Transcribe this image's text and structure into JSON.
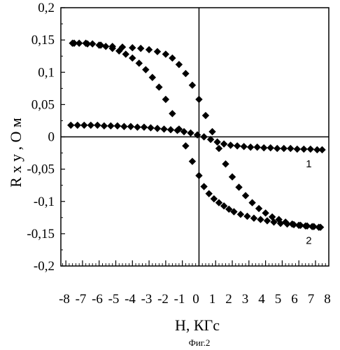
{
  "chart_data": {
    "type": "scatter",
    "title": "",
    "caption": "Фиг.2",
    "xlabel": "H, КГс",
    "ylabel": "R x y , О м",
    "xlim": [
      -8.3,
      7.8
    ],
    "ylim": [
      -0.2,
      0.2
    ],
    "x_ticks": [
      -8,
      -7,
      -6,
      -5,
      -4,
      -3,
      -2,
      -1,
      0,
      1,
      2,
      3,
      4,
      5,
      6,
      7,
      8
    ],
    "x_tick_labels": [
      "-8",
      "-7",
      "-6",
      "-5",
      "-4",
      "-3",
      "-2",
      "-1",
      "0",
      "1",
      "2",
      "3",
      "4",
      "5",
      "6",
      "7",
      "8"
    ],
    "y_ticks": [
      0.2,
      0.15,
      0.1,
      0.05,
      0,
      -0.05,
      -0.1,
      -0.15,
      -0.2
    ],
    "y_tick_labels": [
      "0,2",
      "0,15",
      "0,1",
      "0,05",
      "0",
      "-0,05",
      "-0,1",
      "-0,15",
      "-0,2"
    ],
    "grid": false,
    "marker": "diamond",
    "series": [
      {
        "name": "1",
        "x": [
          -7.7,
          -7.3,
          -6.9,
          -6.5,
          -6.1,
          -5.7,
          -5.3,
          -4.9,
          -4.5,
          -4.1,
          -3.7,
          -3.3,
          -2.9,
          -2.5,
          -2.1,
          -1.7,
          -1.3,
          -0.9,
          -0.5,
          -0.1,
          0.3,
          0.7,
          1.1,
          1.5,
          1.9,
          2.3,
          2.7,
          3.1,
          3.5,
          3.9,
          4.3,
          4.7,
          5.1,
          5.5,
          5.9,
          6.3,
          6.7,
          7.1,
          7.4
        ],
        "y": [
          0.018,
          0.018,
          0.018,
          0.018,
          0.018,
          0.017,
          0.017,
          0.017,
          0.016,
          0.016,
          0.015,
          0.015,
          0.014,
          0.013,
          0.012,
          0.011,
          0.01,
          0.008,
          0.006,
          0.003,
          0.0,
          -0.004,
          -0.008,
          -0.011,
          -0.013,
          -0.014,
          -0.015,
          -0.016,
          -0.016,
          -0.017,
          -0.017,
          -0.018,
          -0.018,
          -0.018,
          -0.019,
          -0.019,
          -0.019,
          -0.02,
          -0.02
        ]
      },
      {
        "name": "2",
        "x": [
          -7.6,
          -7.2,
          -6.8,
          -6.4,
          -6.0,
          -5.6,
          -5.2,
          -4.8,
          -4.4,
          -4.0,
          -3.6,
          -3.2,
          -2.8,
          -2.4,
          -2.0,
          -1.6,
          -1.2,
          -0.8,
          -0.4,
          0.0,
          0.3,
          0.6,
          0.9,
          1.2,
          1.5,
          1.8,
          2.1,
          2.5,
          2.9,
          3.3,
          3.7,
          4.1,
          4.5,
          4.9,
          5.3,
          5.7,
          6.1,
          6.5,
          6.9,
          7.3,
          -7.5,
          -6.7,
          -5.9,
          -5.2,
          -4.6,
          -4.0,
          -3.5,
          -3.0,
          -2.5,
          -2.0,
          -1.6,
          -1.2,
          -0.8,
          -0.4,
          0.0,
          0.4,
          0.8,
          1.2,
          1.6,
          2.0,
          2.4,
          2.8,
          3.2,
          3.6,
          4.0,
          4.4,
          4.8,
          5.2,
          5.6,
          6.0,
          6.4,
          6.8,
          7.2
        ],
        "y": [
          0.145,
          0.145,
          0.145,
          0.144,
          0.142,
          0.14,
          0.137,
          0.133,
          0.128,
          0.122,
          0.114,
          0.104,
          0.092,
          0.077,
          0.058,
          0.036,
          0.012,
          -0.014,
          -0.038,
          -0.06,
          -0.077,
          -0.088,
          -0.096,
          -0.102,
          -0.107,
          -0.112,
          -0.116,
          -0.12,
          -0.123,
          -0.126,
          -0.128,
          -0.13,
          -0.132,
          -0.134,
          -0.135,
          -0.136,
          -0.137,
          -0.138,
          -0.139,
          -0.14,
          0.145,
          0.144,
          0.142,
          0.14,
          0.139,
          0.138,
          0.137,
          0.135,
          0.132,
          0.128,
          0.122,
          0.112,
          0.098,
          0.08,
          0.058,
          0.033,
          0.008,
          -0.018,
          -0.042,
          -0.062,
          -0.078,
          -0.091,
          -0.102,
          -0.111,
          -0.118,
          -0.124,
          -0.128,
          -0.132,
          -0.135,
          -0.137,
          -0.138,
          -0.139,
          -0.14
        ]
      }
    ],
    "annotations": [
      {
        "text": "1",
        "x": 6.6,
        "y": -0.047
      },
      {
        "text": "2",
        "x": 6.6,
        "y": -0.166
      }
    ]
  }
}
